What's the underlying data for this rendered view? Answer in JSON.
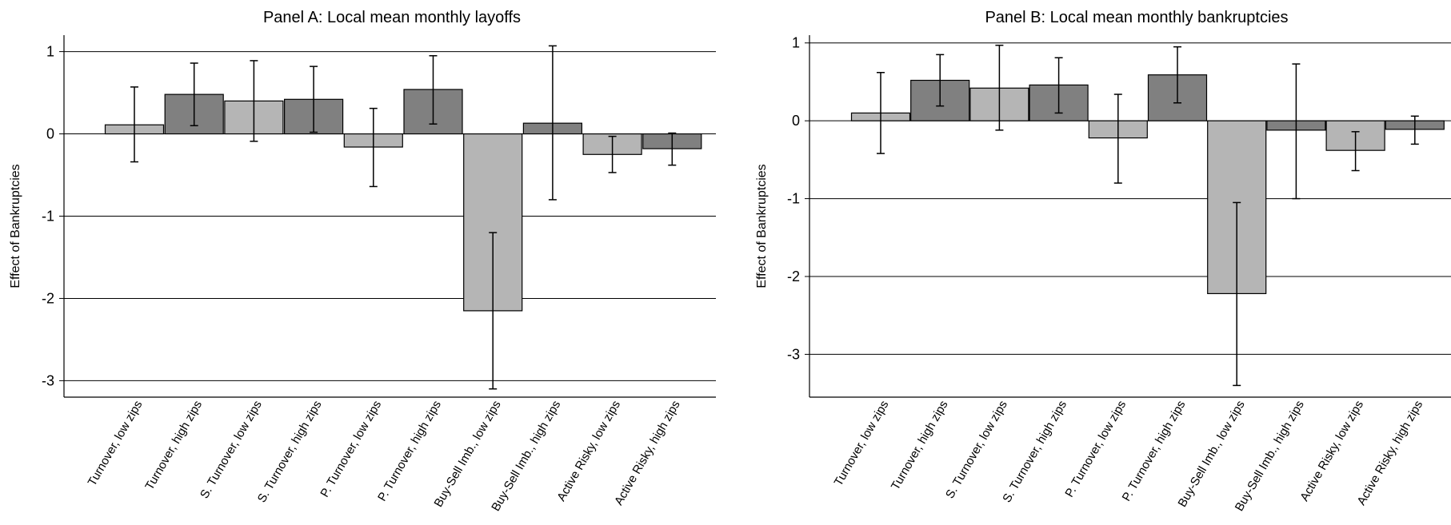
{
  "chart_data": [
    {
      "type": "bar",
      "title": "Panel A: Local mean monthly layoffs",
      "xlabel": "",
      "ylabel": "Effect of Bankruptcies",
      "ylim": [
        -3.2,
        1.2
      ],
      "yticks": [
        1,
        0,
        -1,
        -2,
        -3
      ],
      "grid": true,
      "categories": [
        "Turnover, low zips",
        "Turnover, high zips",
        "S. Turnover, low zips",
        "S. Turnover, high zips",
        "P. Turnover, low zips",
        "P. Turnover, high zips",
        "Buy-Sell Imb., low zips",
        "Buy-Sell Imb., high zips",
        "Active Risky, low zips",
        "Active Risky, high zips"
      ],
      "values": [
        0.11,
        0.48,
        0.4,
        0.42,
        -0.16,
        0.54,
        -2.15,
        0.13,
        -0.25,
        -0.18
      ],
      "ci_low": [
        -0.34,
        0.1,
        -0.09,
        0.02,
        -0.64,
        0.12,
        -3.1,
        -0.8,
        -0.47,
        -0.38
      ],
      "ci_high": [
        0.57,
        0.86,
        0.89,
        0.82,
        0.31,
        0.95,
        -1.2,
        1.07,
        -0.03,
        0.01
      ],
      "bar_colors": [
        "#b5b5b5",
        "#808080",
        "#b5b5b5",
        "#808080",
        "#b5b5b5",
        "#808080",
        "#b5b5b5",
        "#808080",
        "#b5b5b5",
        "#808080"
      ]
    },
    {
      "type": "bar",
      "title": "Panel B: Local mean monthly bankruptcies",
      "xlabel": "",
      "ylabel": "Effect of Bankruptcies",
      "ylim": [
        -3.55,
        1.1
      ],
      "yticks": [
        1,
        0,
        -1,
        -2,
        -3
      ],
      "grid": true,
      "categories": [
        "Turnover, low zips",
        "Turnover, high zips",
        "S. Turnover, low zips",
        "S. Turnover, high zips",
        "P. Turnover, low zips",
        "P. Turnover, high zips",
        "Buy-Sell Imb., low zips",
        "Buy-Sell Imb., high zips",
        "Active Risky, low zips",
        "Active Risky, high zips"
      ],
      "values": [
        0.1,
        0.52,
        0.42,
        0.46,
        -0.22,
        0.59,
        -2.22,
        -0.12,
        -0.38,
        -0.11
      ],
      "ci_low": [
        -0.42,
        0.19,
        -0.12,
        0.1,
        -0.8,
        0.23,
        -3.4,
        -1.0,
        -0.64,
        -0.3
      ],
      "ci_high": [
        0.62,
        0.85,
        0.97,
        0.81,
        0.34,
        0.95,
        -1.05,
        0.73,
        -0.14,
        0.06
      ],
      "bar_colors": [
        "#b5b5b5",
        "#808080",
        "#b5b5b5",
        "#808080",
        "#b5b5b5",
        "#808080",
        "#b5b5b5",
        "#808080",
        "#b5b5b5",
        "#808080"
      ]
    }
  ]
}
